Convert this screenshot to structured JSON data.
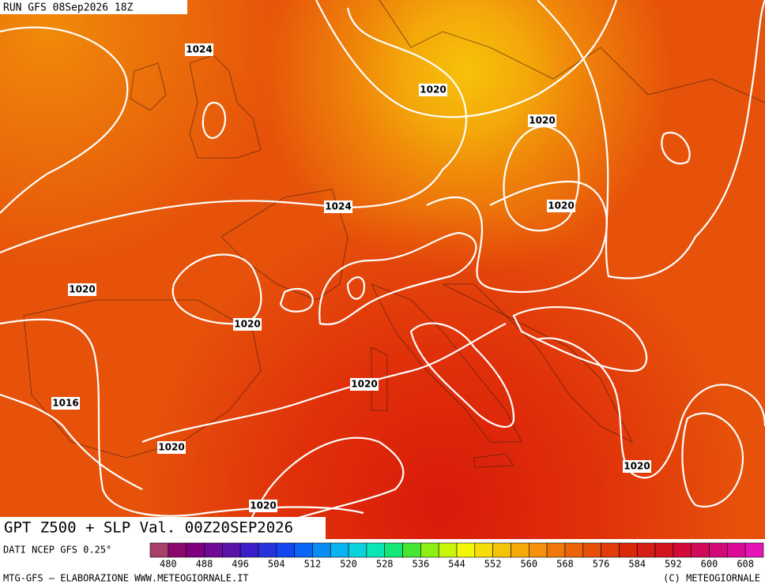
{
  "header": {
    "run": "RUN GFS 08Sep2026 18Z"
  },
  "isobars": {
    "labels": [
      "1024",
      "1020",
      "1020",
      "1024",
      "1020",
      "1020",
      "1020",
      "1020",
      "1016",
      "1020",
      "1020",
      "1020"
    ]
  },
  "footer": {
    "title": "GPT Z500 + SLP Val. 00Z20SEP2026",
    "source": "DATI NCEP GFS 0.25°",
    "credit": "MTG-GFS – ELABORAZIONE WWW.METEOGIORNALE.IT",
    "copyright": "(C) METEOGIORNALE"
  },
  "legend": {
    "labels": [
      480,
      488,
      496,
      504,
      512,
      520,
      528,
      536,
      544,
      552,
      560,
      568,
      576,
      584,
      592,
      600,
      608
    ],
    "colors": [
      "#a8406a",
      "#8c0a6e",
      "#800080",
      "#6e0a96",
      "#5a14aa",
      "#3c1ec8",
      "#2832dc",
      "#1446f0",
      "#0a64f5",
      "#0a8cf5",
      "#0ab4f0",
      "#0ad2dc",
      "#0ae6b4",
      "#14e678",
      "#46e632",
      "#8cf014",
      "#c8f50a",
      "#f5f50a",
      "#f5dc0a",
      "#f5c30a",
      "#f5aa0a",
      "#f5910a",
      "#f0780a",
      "#eb640a",
      "#e6500a",
      "#e13c0a",
      "#dc280a",
      "#d71e14",
      "#d2141e",
      "#d20a3c",
      "#d20a5a",
      "#d20a78",
      "#dc0a96",
      "#e614b4"
    ]
  }
}
